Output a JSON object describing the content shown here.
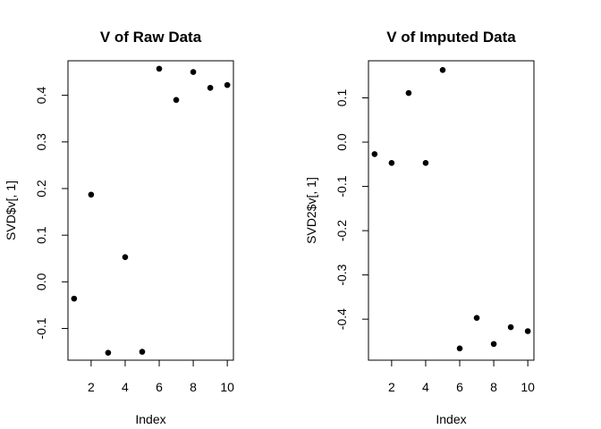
{
  "chart_data": [
    {
      "type": "scatter",
      "title": "V of Raw Data",
      "xlabel": "Index",
      "ylabel": "SVD$v[, 1]",
      "xlim": [
        0.64,
        10.36
      ],
      "ylim": [
        -0.168,
        0.474
      ],
      "xticks": [
        2,
        4,
        6,
        8,
        10
      ],
      "yticks": [
        -0.1,
        0.0,
        0.1,
        0.2,
        0.3,
        0.4
      ],
      "ytick_labels": [
        "-0.1",
        "0.0",
        "0.1",
        "0.2",
        "0.3",
        "0.4"
      ],
      "grid": false,
      "point_color": "#000000",
      "x": [
        1,
        2,
        3,
        4,
        5,
        6,
        7,
        8,
        9,
        10
      ],
      "y": [
        -0.036,
        0.187,
        -0.152,
        0.053,
        -0.15,
        0.457,
        0.39,
        0.45,
        0.416,
        0.422
      ]
    },
    {
      "type": "scatter",
      "title": "V of Imputed Data",
      "xlabel": "Index",
      "ylabel": "SVD2$v[, 1]",
      "xlim": [
        0.64,
        10.36
      ],
      "ylim": [
        -0.4926,
        0.1838
      ],
      "xticks": [
        2,
        4,
        6,
        8,
        10
      ],
      "yticks": [
        -0.4,
        -0.3,
        -0.2,
        -0.1,
        0.0,
        0.1
      ],
      "ytick_labels": [
        "-0.4",
        "-0.3",
        "-0.2",
        "-0.1",
        "0.0",
        "0.1"
      ],
      "grid": false,
      "point_color": "#000000",
      "x": [
        1,
        2,
        3,
        4,
        5,
        6,
        7,
        8,
        9,
        10
      ],
      "y": [
        -0.027,
        -0.047,
        0.111,
        -0.047,
        0.163,
        -0.466,
        -0.397,
        -0.456,
        -0.418,
        -0.427
      ]
    }
  ]
}
